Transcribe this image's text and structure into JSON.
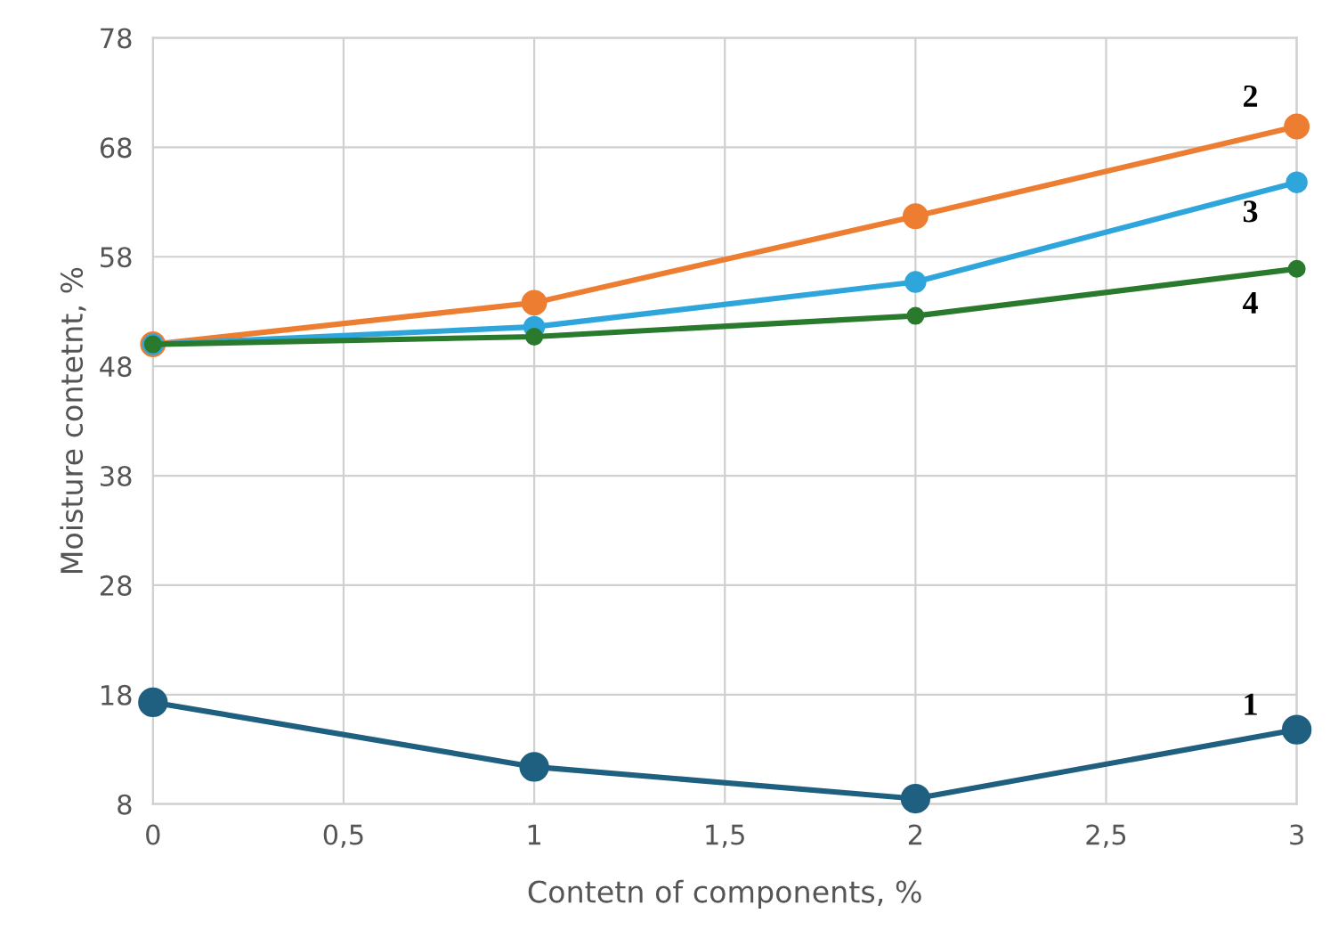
{
  "chart_data": {
    "type": "line",
    "xlabel": "Contetn of components, %",
    "ylabel": "Moisture contetnt, %",
    "x": [
      0,
      1,
      2,
      3
    ],
    "series": [
      {
        "name": "1",
        "color": "#1f5f80",
        "values": [
          17.3,
          11.4,
          8.5,
          14.8
        ]
      },
      {
        "name": "2",
        "color": "#ed7d31",
        "values": [
          50,
          53.8,
          61.7,
          69.9
        ]
      },
      {
        "name": "3",
        "color": "#2ea6dc",
        "values": [
          50,
          51.6,
          55.7,
          64.8
        ]
      },
      {
        "name": "4",
        "color": "#2a7a2e",
        "values": [
          50,
          50.7,
          52.6,
          56.9
        ]
      }
    ],
    "xlim": [
      0,
      3
    ],
    "xticks": [
      0,
      {
        "value": 0.5,
        "label": "0,5"
      },
      1,
      {
        "value": 1.5,
        "label": "1,5"
      },
      2,
      {
        "value": 2.5,
        "label": "2,5"
      },
      3
    ],
    "ylim": [
      8,
      78
    ],
    "yticks": [
      8,
      18,
      28,
      38,
      48,
      58,
      68,
      78
    ],
    "grid": true,
    "marker": "circle",
    "line_style": "solid"
  }
}
